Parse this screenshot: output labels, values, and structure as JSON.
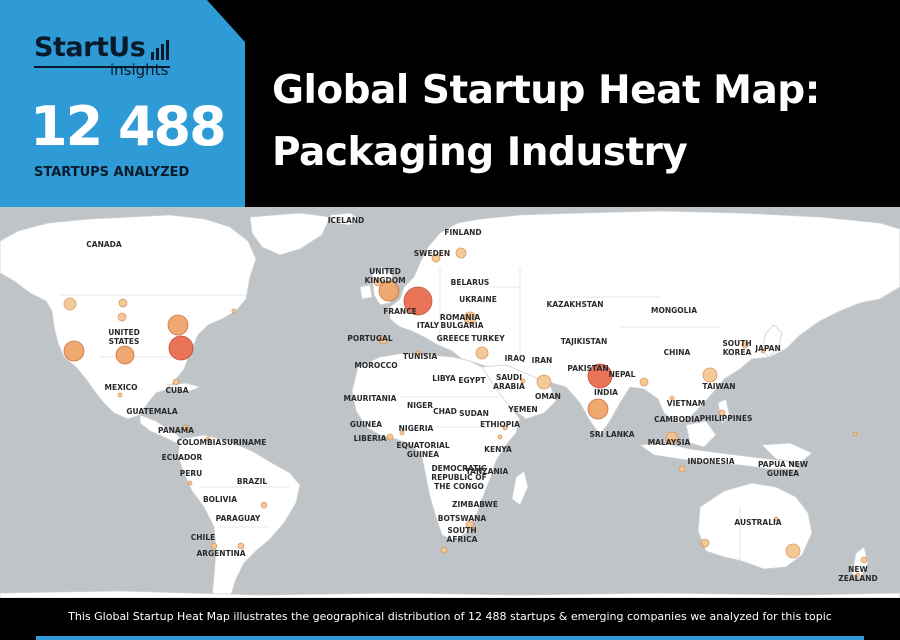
{
  "brand": {
    "name": "StartUs",
    "sub": "insights",
    "color": "#2e9ad6"
  },
  "stat": {
    "number": "12 488",
    "caption": "STARTUPS ANALYZED"
  },
  "title": {
    "line1": "Global Startup Heat Map:",
    "line2": "Packaging Industry"
  },
  "map": {
    "labels": [
      {
        "id": "iceland",
        "text": "ICELAND"
      },
      {
        "id": "finland",
        "text": "FINLAND"
      },
      {
        "id": "canada",
        "text": "CANADA"
      },
      {
        "id": "sweden",
        "text": "SWEDEN"
      },
      {
        "id": "united-kingdom",
        "text": "UNITED\nKINGDOM"
      },
      {
        "id": "belarus",
        "text": "BELARUS"
      },
      {
        "id": "ukraine",
        "text": "UKRAINE"
      },
      {
        "id": "kazakhstan",
        "text": "KAZAKHSTAN"
      },
      {
        "id": "mongolia",
        "text": "MONGOLIA"
      },
      {
        "id": "france",
        "text": "FRANCE"
      },
      {
        "id": "romania",
        "text": "ROMANIA"
      },
      {
        "id": "italy",
        "text": "ITALY"
      },
      {
        "id": "bulgaria",
        "text": "BULGARIA"
      },
      {
        "id": "united-states",
        "text": "UNITED\nSTATES"
      },
      {
        "id": "portugal",
        "text": "PORTUGAL"
      },
      {
        "id": "greece",
        "text": "GREECE"
      },
      {
        "id": "turkey",
        "text": "TURKEY"
      },
      {
        "id": "tajikistan",
        "text": "TAJIKISTAN"
      },
      {
        "id": "south-korea",
        "text": "SOUTH\nKOREA"
      },
      {
        "id": "japan",
        "text": "JAPAN"
      },
      {
        "id": "china",
        "text": "CHINA"
      },
      {
        "id": "tunisia",
        "text": "TUNISIA"
      },
      {
        "id": "iraq",
        "text": "IRAQ"
      },
      {
        "id": "iran",
        "text": "IRAN"
      },
      {
        "id": "morocco",
        "text": "MOROCCO"
      },
      {
        "id": "pakistan",
        "text": "PAKISTAN"
      },
      {
        "id": "nepal",
        "text": "NEPAL"
      },
      {
        "id": "mexico",
        "text": "MEXICO"
      },
      {
        "id": "cuba",
        "text": "CUBA"
      },
      {
        "id": "libya",
        "text": "LIBYA"
      },
      {
        "id": "egypt",
        "text": "EGYPT"
      },
      {
        "id": "saudi-arabia",
        "text": "SAUDI\nARABIA"
      },
      {
        "id": "taiwan",
        "text": "TAIWAN"
      },
      {
        "id": "india",
        "text": "INDIA"
      },
      {
        "id": "oman",
        "text": "OMAN"
      },
      {
        "id": "mauritania",
        "text": "MAURITANIA"
      },
      {
        "id": "guatemala",
        "text": "GUATEMALA"
      },
      {
        "id": "niger",
        "text": "NIGER"
      },
      {
        "id": "vietnam",
        "text": "VIETNAM"
      },
      {
        "id": "chad",
        "text": "CHAD"
      },
      {
        "id": "sudan",
        "text": "SUDAN"
      },
      {
        "id": "yemen",
        "text": "YEMEN"
      },
      {
        "id": "cambodia",
        "text": "CAMBODIA"
      },
      {
        "id": "philippines",
        "text": "PHILIPPINES"
      },
      {
        "id": "guinea",
        "text": "GUINEA"
      },
      {
        "id": "panama",
        "text": "PANAMA"
      },
      {
        "id": "nigeria",
        "text": "NIGERIA"
      },
      {
        "id": "ethiopia",
        "text": "ETHIOPIA"
      },
      {
        "id": "sri-lanka",
        "text": "SRI LANKA"
      },
      {
        "id": "liberia",
        "text": "LIBERIA"
      },
      {
        "id": "colombia",
        "text": "COLOMBIA"
      },
      {
        "id": "suriname",
        "text": "SURINAME"
      },
      {
        "id": "malaysia",
        "text": "MALAYSIA"
      },
      {
        "id": "equatorial-guinea",
        "text": "EQUATORIAL\nGUINEA"
      },
      {
        "id": "kenya",
        "text": "KENYA"
      },
      {
        "id": "ecuador",
        "text": "ECUADOR"
      },
      {
        "id": "indonesia",
        "text": "INDONESIA"
      },
      {
        "id": "papua-new-guinea",
        "text": "PAPUA NEW\nGUINEA"
      },
      {
        "id": "dr-congo",
        "text": "DEMOCRATIC\nREPUBLIC OF\nTHE CONGO"
      },
      {
        "id": "peru",
        "text": "PERU"
      },
      {
        "id": "brazil",
        "text": "BRAZIL"
      },
      {
        "id": "tanzania",
        "text": "TANZANIA"
      },
      {
        "id": "bolivia",
        "text": "BOLIVIA"
      },
      {
        "id": "zimbabwe",
        "text": "ZIMBABWE"
      },
      {
        "id": "paraguay",
        "text": "PARAGUAY"
      },
      {
        "id": "botswana",
        "text": "BOTSWANA"
      },
      {
        "id": "australia",
        "text": "AUSTRALIA"
      },
      {
        "id": "south-africa",
        "text": "SOUTH\nAFRICA"
      },
      {
        "id": "chile",
        "text": "CHILE"
      },
      {
        "id": "argentina",
        "text": "ARGENTINA"
      },
      {
        "id": "new-zealand",
        "text": "NEW\nZEALAND"
      }
    ],
    "colors": {
      "ocean": "#bfc4c9",
      "land": "#ffffff",
      "border": "#c8c8c8",
      "bubble_small": "#f3c48d",
      "bubble_medium": "#eea264",
      "bubble_large": "#e8694a"
    },
    "hubs": [
      {
        "region": "france",
        "level": "largest"
      },
      {
        "region": "india-north",
        "level": "large"
      },
      {
        "region": "us-east",
        "level": "large"
      },
      {
        "region": "united-kingdom",
        "level": "large"
      },
      {
        "region": "india-west",
        "level": "large"
      },
      {
        "region": "us-northeast",
        "level": "medium"
      },
      {
        "region": "us-west",
        "level": "medium"
      },
      {
        "region": "us-south",
        "level": "medium"
      }
    ]
  },
  "footer": {
    "text": "This Global Startup Heat Map illustrates the geographical distribution of 12 488 startups & emerging companies we analyzed for this topic"
  }
}
